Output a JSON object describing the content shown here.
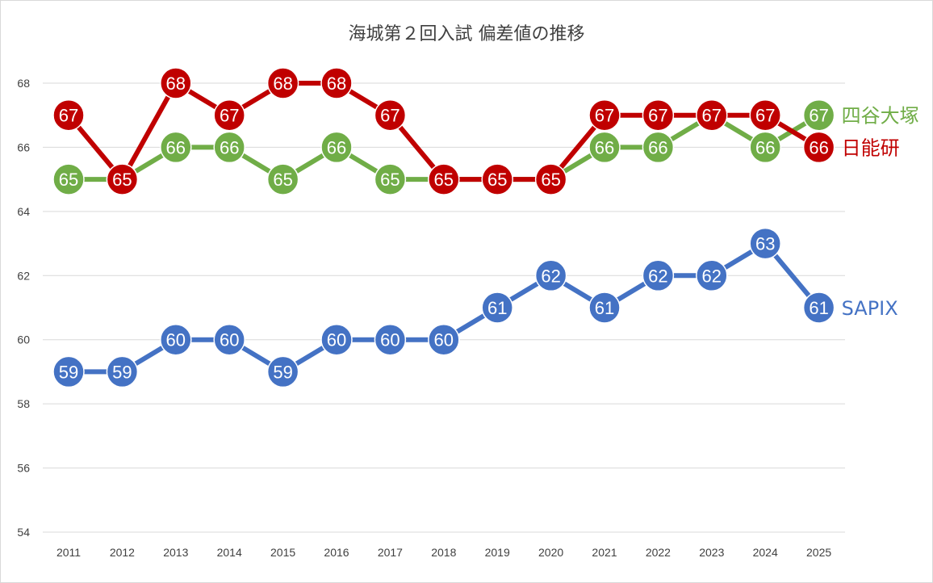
{
  "chart_data": {
    "type": "line",
    "title": "海城第２回入試 偏差値の推移",
    "xlabel": "",
    "ylabel": "",
    "x": [
      "2011",
      "2012",
      "2013",
      "2014",
      "2015",
      "2016",
      "2017",
      "2018",
      "2019",
      "2020",
      "2021",
      "2022",
      "2023",
      "2024",
      "2025"
    ],
    "ylim": [
      54,
      68
    ],
    "yticks": [
      54,
      56,
      58,
      60,
      62,
      64,
      66,
      68
    ],
    "grid": true,
    "legend": "series labels placed at the right end of each line",
    "series": [
      {
        "name": "四谷大塚",
        "color": "#70ad47",
        "values": [
          65,
          65,
          66,
          66,
          65,
          66,
          65,
          65,
          65,
          65,
          66,
          66,
          67,
          66,
          67
        ]
      },
      {
        "name": "日能研",
        "color": "#c00000",
        "values": [
          67,
          65,
          68,
          67,
          68,
          68,
          67,
          65,
          65,
          65,
          67,
          67,
          67,
          67,
          66
        ]
      },
      {
        "name": "SAPIX",
        "color": "#4472c4",
        "values": [
          59,
          59,
          60,
          60,
          59,
          60,
          60,
          60,
          61,
          62,
          61,
          62,
          62,
          63,
          61
        ]
      }
    ]
  }
}
